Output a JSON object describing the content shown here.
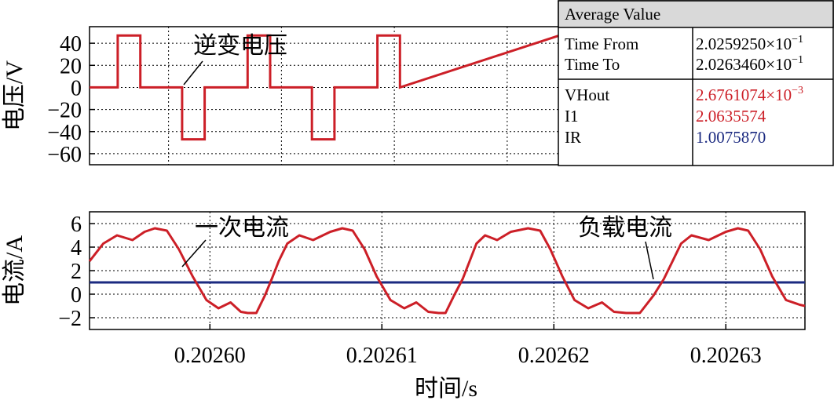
{
  "chart_data": [
    {
      "type": "line",
      "ylabel": "电压/V",
      "ylim": [
        -70,
        55
      ],
      "xlim": [
        0.202593,
        0.2026346
      ],
      "yticks": [
        "40",
        "20",
        "0",
        "−20",
        "−40",
        "−60"
      ],
      "ytick_values": [
        40,
        20,
        0,
        -20,
        -40,
        -60
      ],
      "grid": true,
      "annotations": [
        {
          "text": "逆变电压"
        }
      ],
      "series": [
        {
          "color": "#cc1f27",
          "x": [
            0.202593,
            0.2025955,
            0.2025955,
            0.2025975,
            0.2025975,
            0.2026012,
            0.2026012,
            0.2026032,
            0.2026032,
            0.202607,
            0.202607,
            0.202609,
            0.202609,
            0.2026127,
            0.2026127,
            0.2026147,
            0.2026147,
            0.2026185,
            0.2026185,
            0.2026205,
            0.2026205,
            0.2026346
          ],
          "y": [
            0,
            0,
            47,
            47,
            0,
            0,
            -47,
            -47,
            0,
            0,
            47,
            47,
            0,
            0,
            -47,
            -47,
            0,
            0,
            47,
            47,
            0,
            47
          ]
        }
      ]
    },
    {
      "type": "line",
      "ylabel": "电流/A",
      "xlabel": "时间/s",
      "ylim": [
        -3,
        7
      ],
      "xlim": [
        0.202593,
        0.2026346
      ],
      "yticks": [
        "6",
        "4",
        "2",
        "0",
        "−2"
      ],
      "ytick_values": [
        6,
        4,
        2,
        0,
        -2
      ],
      "xticks": [
        "0.20260",
        "0.20261",
        "0.20262",
        "0.20263"
      ],
      "xtick_values": [
        0.2026,
        0.20261,
        0.20262,
        0.20263
      ],
      "grid": true,
      "annotations": [
        {
          "text": "一次电流"
        },
        {
          "text": "负载电流"
        }
      ],
      "series": [
        {
          "color": "#cc1f27",
          "x": [
            0.202593,
            0.2025938,
            0.2025946,
            0.2025955,
            0.2025962,
            0.2025968,
            0.2025975,
            0.2025982,
            0.202599,
            0.2025998,
            0.2026005,
            0.2026012,
            0.2026018,
            0.2026022,
            0.2026027,
            0.2026032,
            0.2026036,
            0.202604,
            0.2026045,
            0.2026052,
            0.202606,
            0.202607,
            0.2026077,
            0.2026083,
            0.202609,
            0.2026097,
            0.2026105,
            0.2026113,
            0.202612,
            0.2026127,
            0.2026133,
            0.2026137,
            0.2026142,
            0.2026147,
            0.2026151,
            0.2026155,
            0.202616,
            0.2026167,
            0.2026175,
            0.2026185,
            0.2026192,
            0.2026198,
            0.2026205,
            0.2026212,
            0.202622,
            0.2026228,
            0.2026235,
            0.2026242,
            0.202625,
            0.2026258,
            0.2026264,
            0.2026269,
            0.2026274,
            0.202628,
            0.202629,
            0.20263,
            0.2026307,
            0.2026313,
            0.202632,
            0.2026327,
            0.2026335,
            0.2026343,
            0.2026346
          ],
          "y": [
            2.8,
            4.3,
            5.0,
            4.6,
            5.3,
            5.6,
            5.4,
            3.8,
            1.5,
            -0.5,
            -1.2,
            -0.7,
            -1.5,
            -1.6,
            -1.6,
            -0.1,
            1.3,
            2.8,
            4.3,
            5.0,
            4.6,
            5.3,
            5.6,
            5.4,
            3.8,
            1.5,
            -0.5,
            -1.2,
            -0.7,
            -1.5,
            -1.6,
            -1.6,
            -0.1,
            1.3,
            2.8,
            4.3,
            5.0,
            4.6,
            5.3,
            5.6,
            5.4,
            3.8,
            1.5,
            -0.5,
            -1.2,
            -0.7,
            -1.5,
            -1.6,
            -1.6,
            -0.1,
            1.3,
            2.8,
            4.3,
            5.0,
            4.6,
            5.3,
            5.6,
            5.4,
            3.8,
            1.5,
            -0.5,
            -0.9,
            -1.0
          ]
        },
        {
          "color": "#1b2a80",
          "x": [
            0.202593,
            0.2026346
          ],
          "y": [
            1.0,
            1.0
          ]
        }
      ]
    }
  ],
  "measure_table": {
    "title": "Average Value",
    "rows_time": [
      {
        "label": "Time From",
        "value": "2.0259250×10",
        "exp": "−1"
      },
      {
        "label": "Time To",
        "value": "2.0263460×10",
        "exp": "−1"
      }
    ],
    "rows_values": [
      {
        "label": "VHout",
        "value": "2.6761074×10",
        "exp": "−3",
        "color": "#cc1f27"
      },
      {
        "label": "I1",
        "value": "2.0635574",
        "exp": "",
        "color": "#cc1f27"
      },
      {
        "label": "IR",
        "value": "1.0075870",
        "exp": "",
        "color": "#1b2a80"
      }
    ]
  }
}
